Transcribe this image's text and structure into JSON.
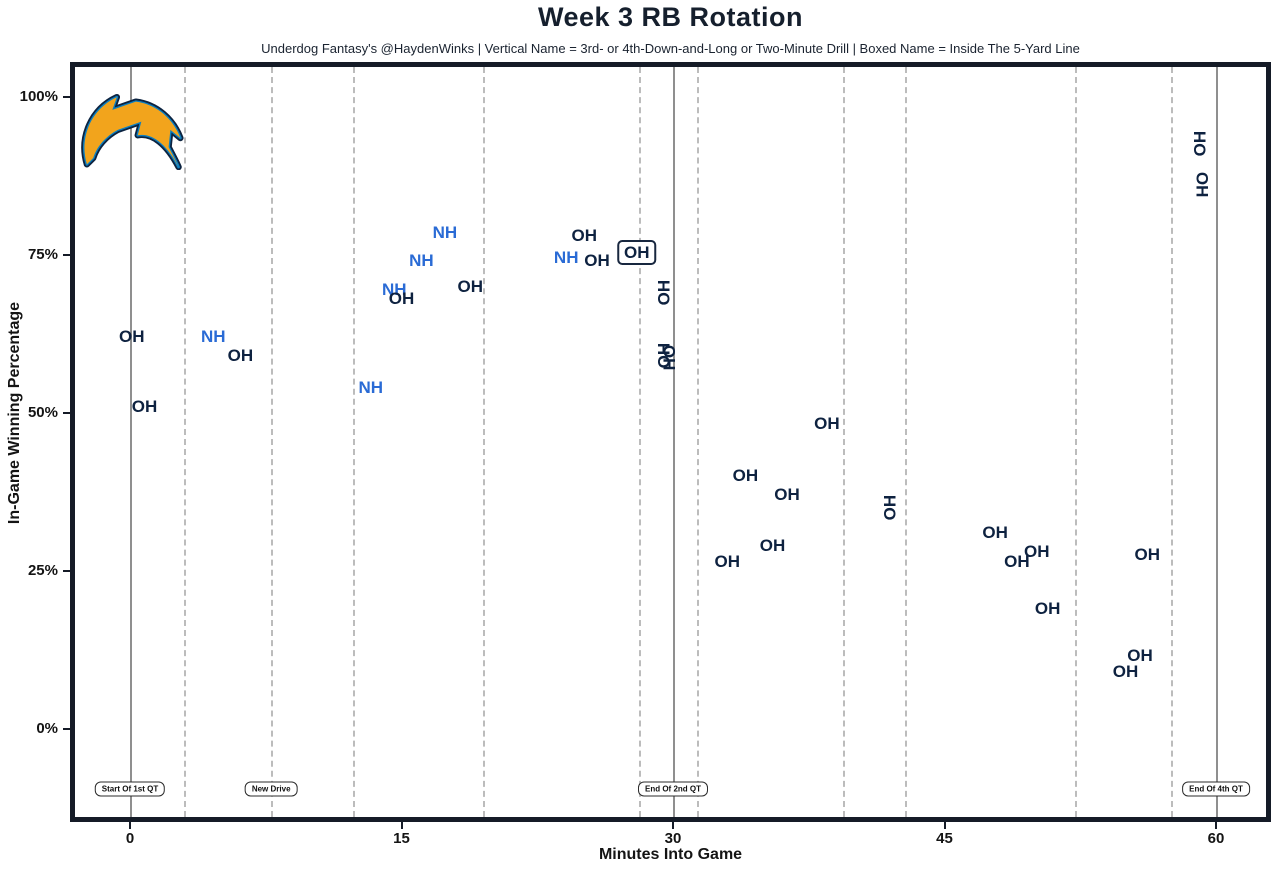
{
  "header": {
    "title": "Week 3 RB Rotation",
    "subtitle": "Underdog Fantasy's @HaydenWinks | Vertical Name = 3rd- or 4th-Down-and-Long or Two-Minute Drill | Boxed Name = Inside The 5-Yard Line"
  },
  "axes": {
    "xlabel": "Minutes Into Game",
    "ylabel": "In-Game Winning Percentage"
  },
  "logo": {
    "name": "chargers-bolt-logo",
    "gold": "#f2a41c",
    "powder_blue": "#0a7ec2",
    "navy": "#0c2340"
  },
  "chart_data": {
    "type": "scatter",
    "title": "Week 3 RB Rotation",
    "xlabel": "Minutes Into Game",
    "ylabel": "In-Game Winning Percentage",
    "xlim": [
      -3,
      62.8
    ],
    "ylim": [
      -14,
      104.5
    ],
    "grid": "vertical-drive-lines-only",
    "x_ticks": [
      0,
      15,
      30,
      45,
      60
    ],
    "y_ticks": [
      0,
      25,
      50,
      75,
      100
    ],
    "y_tick_labels": [
      "0%",
      "25%",
      "50%",
      "75%",
      "100%"
    ],
    "colors": {
      "OH": "#0e2240",
      "NH": "#2a6bd5"
    },
    "legend_note_vertical": "Vertical Name = 3rd- or 4th-Down-and-Long or Two-Minute Drill",
    "legend_note_boxed": "Boxed Name = Inside The 5-Yard Line",
    "drive_lines_x": [
      3.0,
      7.8,
      12.3,
      19.5,
      28.1,
      31.3,
      39.4,
      42.8,
      52.2,
      57.5
    ],
    "quarter_lines": [
      {
        "x": 0,
        "label": "Start Of 1st QT"
      },
      {
        "x": 30,
        "label": "End Of 2nd QT"
      },
      {
        "x": 60,
        "label": "End Of 4th QT"
      }
    ],
    "new_drive_label": {
      "x": 7.8,
      "label": "New Drive"
    },
    "flag_label_y": -9.5,
    "points": [
      {
        "x": 4.6,
        "y": 62,
        "label": "NH",
        "rot": 0,
        "boxed": false
      },
      {
        "x": 13.3,
        "y": 54,
        "label": "NH",
        "rot": 0,
        "boxed": false
      },
      {
        "x": 14.6,
        "y": 69.5,
        "label": "NH",
        "rot": 0,
        "boxed": false
      },
      {
        "x": 16.1,
        "y": 74,
        "label": "NH",
        "rot": 0,
        "boxed": false
      },
      {
        "x": 17.4,
        "y": 78.5,
        "label": "NH",
        "rot": 0,
        "boxed": false
      },
      {
        "x": 24.1,
        "y": 74.5,
        "label": "NH",
        "rot": 0,
        "boxed": false
      },
      {
        "x": 0.1,
        "y": 62,
        "label": "OH",
        "rot": 0,
        "boxed": false
      },
      {
        "x": 0.8,
        "y": 51,
        "label": "OH",
        "rot": 0,
        "boxed": false
      },
      {
        "x": 6.1,
        "y": 59,
        "label": "OH",
        "rot": 0,
        "boxed": false
      },
      {
        "x": 15.0,
        "y": 68,
        "label": "OH",
        "rot": 0,
        "boxed": false
      },
      {
        "x": 18.8,
        "y": 70,
        "label": "OH",
        "rot": 0,
        "boxed": false
      },
      {
        "x": 25.1,
        "y": 78,
        "label": "OH",
        "rot": 0,
        "boxed": false
      },
      {
        "x": 25.8,
        "y": 74,
        "label": "OH",
        "rot": 0,
        "boxed": false
      },
      {
        "x": 28.0,
        "y": 75.3,
        "label": "OH",
        "rot": 0,
        "boxed": true
      },
      {
        "x": 29.5,
        "y": 69,
        "label": "OH",
        "rot": -90,
        "boxed": false
      },
      {
        "x": 29.5,
        "y": 59,
        "label": "OH",
        "rot": -90,
        "boxed": false
      },
      {
        "x": 29.8,
        "y": 58.7,
        "label": "OH",
        "rot": 90,
        "boxed": false
      },
      {
        "x": 38.5,
        "y": 48.3,
        "label": "OH",
        "rot": 0,
        "boxed": false
      },
      {
        "x": 34.0,
        "y": 40,
        "label": "OH",
        "rot": 0,
        "boxed": false
      },
      {
        "x": 36.3,
        "y": 37,
        "label": "OH",
        "rot": 0,
        "boxed": false
      },
      {
        "x": 35.5,
        "y": 29,
        "label": "OH",
        "rot": 0,
        "boxed": false
      },
      {
        "x": 33.0,
        "y": 26.5,
        "label": "OH",
        "rot": 0,
        "boxed": false
      },
      {
        "x": 42.0,
        "y": 35,
        "label": "OH",
        "rot": -90,
        "boxed": false
      },
      {
        "x": 47.8,
        "y": 31,
        "label": "OH",
        "rot": 0,
        "boxed": false
      },
      {
        "x": 50.1,
        "y": 28,
        "label": "OH",
        "rot": 0,
        "boxed": false
      },
      {
        "x": 49.0,
        "y": 26.5,
        "label": "OH",
        "rot": 0,
        "boxed": false
      },
      {
        "x": 50.7,
        "y": 19,
        "label": "OH",
        "rot": 0,
        "boxed": false
      },
      {
        "x": 56.2,
        "y": 27.5,
        "label": "OH",
        "rot": 0,
        "boxed": false
      },
      {
        "x": 55.8,
        "y": 11.5,
        "label": "OH",
        "rot": 0,
        "boxed": false
      },
      {
        "x": 55.0,
        "y": 9,
        "label": "OH",
        "rot": 0,
        "boxed": false
      },
      {
        "x": 59.1,
        "y": 92.5,
        "label": "OH",
        "rot": -90,
        "boxed": false
      },
      {
        "x": 59.2,
        "y": 86,
        "label": "OH",
        "rot": 90,
        "boxed": false
      }
    ]
  }
}
